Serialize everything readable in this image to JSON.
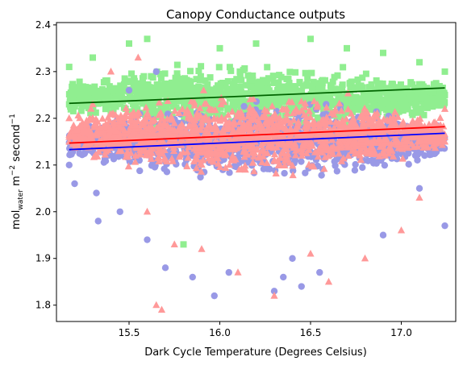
{
  "chart_data": {
    "type": "scatter",
    "title": "Canopy Conductance outputs",
    "xlabel": "Dark Cycle Temperature (Degrees Celsius)",
    "ylabel": {
      "main": "mol",
      "sub": "water",
      "rest": " m",
      "exp1": "−2",
      "rest2": " second",
      "exp2": "−1"
    },
    "xlim": [
      15.1,
      17.3
    ],
    "ylim": [
      1.765,
      2.405
    ],
    "x_ticks": [
      15.5,
      16.0,
      16.5,
      17.0
    ],
    "x_tick_labels": [
      "15.5",
      "16.0",
      "16.5",
      "17.0"
    ],
    "y_ticks": [
      1.8,
      1.9,
      2.0,
      2.1,
      2.2,
      2.3,
      2.4
    ],
    "y_tick_labels": [
      "1.8",
      "1.9",
      "2.0",
      "2.1",
      "2.2",
      "2.3",
      "2.4"
    ],
    "grid": false,
    "legend": "none",
    "series": [
      {
        "marker": "square",
        "color": "#90ee90",
        "cloud": {
          "x_range": [
            15.17,
            17.24
          ],
          "y_center": 2.245,
          "y_spread": 0.095
        },
        "points": [
          [
            15.17,
            2.31
          ],
          [
            15.17,
            2.23
          ],
          [
            15.3,
            2.33
          ],
          [
            15.5,
            2.36
          ],
          [
            15.6,
            2.37
          ],
          [
            16.0,
            2.35
          ],
          [
            16.2,
            2.36
          ],
          [
            16.5,
            2.37
          ],
          [
            16.7,
            2.35
          ],
          [
            16.9,
            2.34
          ],
          [
            17.1,
            2.32
          ],
          [
            17.24,
            2.3
          ],
          [
            17.24,
            2.25
          ],
          [
            15.8,
            1.93
          ]
        ],
        "trend": {
          "x": [
            15.17,
            17.24
          ],
          "y": [
            2.232,
            2.265
          ],
          "color": "#006400"
        }
      },
      {
        "marker": "circle",
        "color": "#9999e6",
        "cloud": {
          "x_range": [
            15.17,
            17.24
          ],
          "y_center": 2.15,
          "y_spread": 0.11
        },
        "points": [
          [
            15.17,
            2.1
          ],
          [
            15.2,
            2.06
          ],
          [
            15.32,
            2.04
          ],
          [
            15.33,
            1.98
          ],
          [
            15.45,
            2.0
          ],
          [
            15.6,
            1.94
          ],
          [
            15.7,
            1.88
          ],
          [
            15.85,
            1.86
          ],
          [
            15.97,
            1.82
          ],
          [
            16.05,
            1.87
          ],
          [
            16.3,
            1.83
          ],
          [
            16.35,
            1.86
          ],
          [
            16.4,
            1.9
          ],
          [
            16.45,
            1.84
          ],
          [
            16.55,
            1.87
          ],
          [
            16.9,
            1.95
          ],
          [
            17.1,
            2.05
          ],
          [
            17.24,
            1.97
          ],
          [
            15.5,
            2.26
          ],
          [
            15.65,
            2.3
          ]
        ],
        "trend": {
          "x": [
            15.17,
            17.24
          ],
          "y": [
            2.133,
            2.168
          ],
          "color": "#0000ff"
        }
      },
      {
        "marker": "triangle",
        "color": "#ff9999",
        "cloud": {
          "x_range": [
            15.17,
            17.24
          ],
          "y_center": 2.165,
          "y_spread": 0.12
        },
        "points": [
          [
            15.17,
            2.2
          ],
          [
            15.17,
            2.16
          ],
          [
            15.3,
            2.23
          ],
          [
            15.4,
            2.3
          ],
          [
            15.6,
            2.0
          ],
          [
            15.65,
            1.8
          ],
          [
            15.68,
            1.79
          ],
          [
            15.75,
            1.93
          ],
          [
            15.9,
            1.92
          ],
          [
            16.1,
            1.87
          ],
          [
            16.3,
            1.82
          ],
          [
            16.5,
            1.91
          ],
          [
            16.6,
            1.85
          ],
          [
            16.8,
            1.9
          ],
          [
            17.0,
            1.96
          ],
          [
            17.1,
            2.03
          ],
          [
            17.24,
            2.15
          ],
          [
            17.24,
            2.22
          ],
          [
            15.55,
            2.33
          ]
        ],
        "trend": {
          "x": [
            15.17,
            17.24
          ],
          "y": [
            2.147,
            2.182
          ],
          "color": "#ff0000"
        }
      }
    ]
  }
}
